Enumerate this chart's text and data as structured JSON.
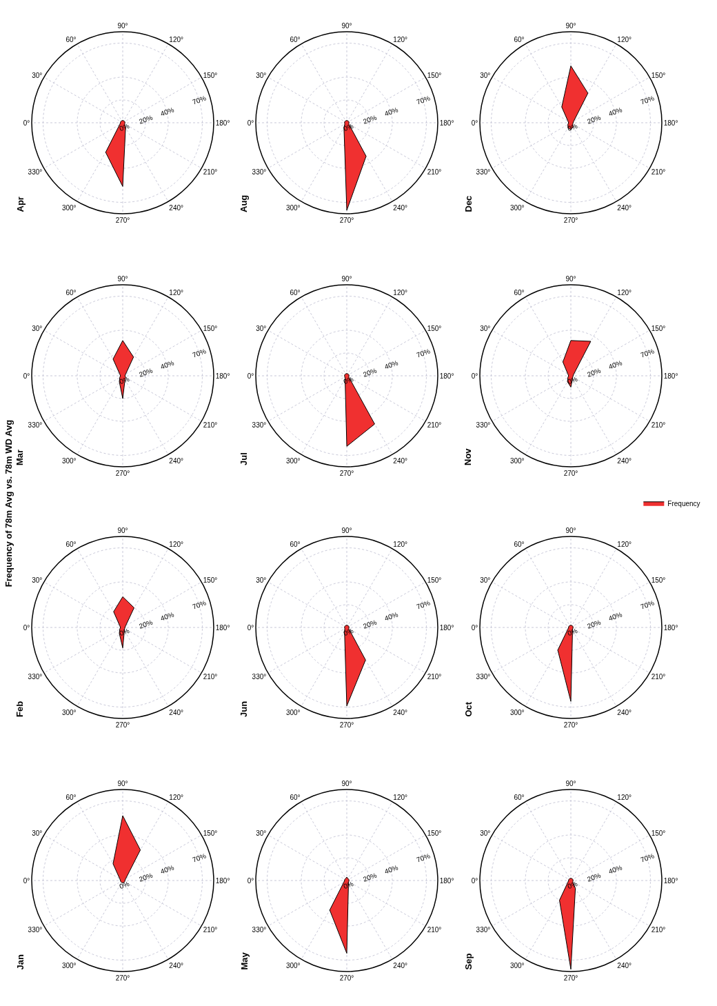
{
  "chart_data": [
    {
      "type": "radar",
      "title": "Jan",
      "annotations": [
        "Frequency of 78m Avg vs. 78m WD Avg"
      ],
      "categories": [
        "90°",
        "120°",
        "150°",
        "180°",
        "210°",
        "240°",
        "270°",
        "300°",
        "330°",
        "0°",
        "30°",
        "60°"
      ],
      "ylim": [
        0,
        80
      ],
      "yticks": [
        {
          "value": 0,
          "label": "0%"
        },
        {
          "value": 20,
          "label": "20%"
        },
        {
          "value": 40,
          "label": "40%"
        },
        {
          "value": 70,
          "label": "70%"
        }
      ],
      "grid": true,
      "series": [
        {
          "color": "#f03030",
          "values": [
            57,
            31,
            3,
            2,
            2,
            2,
            2,
            2,
            2,
            2,
            3,
            17
          ]
        }
      ]
    },
    {
      "type": "radar",
      "title": "Feb",
      "categories": [
        "90°",
        "120°",
        "150°",
        "180°",
        "210°",
        "240°",
        "270°",
        "300°",
        "330°",
        "0°",
        "30°",
        "60°"
      ],
      "ylim": [
        0,
        80
      ],
      "yticks": [
        {
          "value": 0,
          "label": "0%"
        },
        {
          "value": 20,
          "label": "20%"
        },
        {
          "value": 40,
          "label": "40%"
        },
        {
          "value": 70,
          "label": "70%"
        }
      ],
      "grid": true,
      "series": [
        {
          "color": "#f03030",
          "values": [
            27,
            20,
            3,
            2,
            2,
            3,
            18,
            6,
            3,
            2,
            3,
            16
          ]
        }
      ]
    },
    {
      "type": "radar",
      "title": "Mar",
      "categories": [
        "90°",
        "120°",
        "150°",
        "180°",
        "210°",
        "240°",
        "270°",
        "300°",
        "330°",
        "0°",
        "30°",
        "60°"
      ],
      "ylim": [
        0,
        80
      ],
      "yticks": [
        {
          "value": 0,
          "label": "0%"
        },
        {
          "value": 20,
          "label": "20%"
        },
        {
          "value": 40,
          "label": "40%"
        },
        {
          "value": 70,
          "label": "70%"
        }
      ],
      "grid": true,
      "series": [
        {
          "color": "#f03030",
          "values": [
            31,
            19,
            3,
            2,
            3,
            4,
            20,
            6,
            3,
            2,
            3,
            17
          ]
        }
      ]
    },
    {
      "type": "radar",
      "title": "Apr",
      "categories": [
        "90°",
        "120°",
        "150°",
        "180°",
        "210°",
        "240°",
        "270°",
        "300°",
        "330°",
        "0°",
        "30°",
        "60°"
      ],
      "ylim": [
        0,
        80
      ],
      "yticks": [
        {
          "value": 0,
          "label": "0%"
        },
        {
          "value": 20,
          "label": "20%"
        },
        {
          "value": 40,
          "label": "40%"
        },
        {
          "value": 70,
          "label": "70%"
        }
      ],
      "grid": true,
      "series": [
        {
          "color": "#f03030",
          "values": [
            2,
            2,
            2,
            2,
            2,
            5,
            56,
            30,
            3,
            2,
            2,
            2
          ]
        }
      ]
    },
    {
      "type": "radar",
      "title": "May",
      "categories": [
        "90°",
        "120°",
        "150°",
        "180°",
        "210°",
        "240°",
        "270°",
        "300°",
        "330°",
        "0°",
        "30°",
        "60°"
      ],
      "ylim": [
        0,
        80
      ],
      "yticks": [
        {
          "value": 0,
          "label": "0%"
        },
        {
          "value": 20,
          "label": "20%"
        },
        {
          "value": 40,
          "label": "40%"
        },
        {
          "value": 70,
          "label": "70%"
        }
      ],
      "grid": true,
      "series": [
        {
          "color": "#f03030",
          "values": [
            3,
            2,
            2,
            2,
            2,
            3,
            64,
            30,
            3,
            2,
            2,
            2
          ]
        }
      ]
    },
    {
      "type": "radar",
      "title": "Jun",
      "categories": [
        "90°",
        "120°",
        "150°",
        "180°",
        "210°",
        "240°",
        "270°",
        "300°",
        "330°",
        "0°",
        "30°",
        "60°"
      ],
      "ylim": [
        0,
        80
      ],
      "yticks": [
        {
          "value": 0,
          "label": "0%"
        },
        {
          "value": 20,
          "label": "20%"
        },
        {
          "value": 40,
          "label": "40%"
        },
        {
          "value": 70,
          "label": "70%"
        }
      ],
      "grid": true,
      "series": [
        {
          "color": "#f03030",
          "values": [
            2,
            2,
            2,
            2,
            2,
            33,
            69,
            4,
            2,
            2,
            2,
            2
          ]
        }
      ]
    },
    {
      "type": "radar",
      "title": "Jul",
      "categories": [
        "90°",
        "120°",
        "150°",
        "180°",
        "210°",
        "240°",
        "270°",
        "300°",
        "330°",
        "0°",
        "30°",
        "60°"
      ],
      "ylim": [
        0,
        80
      ],
      "yticks": [
        {
          "value": 0,
          "label": "0%"
        },
        {
          "value": 20,
          "label": "20%"
        },
        {
          "value": 40,
          "label": "40%"
        },
        {
          "value": 70,
          "label": "70%"
        }
      ],
      "grid": true,
      "series": [
        {
          "color": "#f03030",
          "values": [
            2,
            2,
            2,
            2,
            2,
            49,
            62,
            3,
            2,
            2,
            2,
            2
          ]
        }
      ]
    },
    {
      "type": "radar",
      "title": "Aug",
      "categories": [
        "90°",
        "120°",
        "150°",
        "180°",
        "210°",
        "240°",
        "270°",
        "300°",
        "330°",
        "0°",
        "30°",
        "60°"
      ],
      "ylim": [
        0,
        80
      ],
      "yticks": [
        {
          "value": 0,
          "label": "0%"
        },
        {
          "value": 20,
          "label": "20%"
        },
        {
          "value": 40,
          "label": "40%"
        },
        {
          "value": 70,
          "label": "70%"
        }
      ],
      "grid": true,
      "series": [
        {
          "color": "#f03030",
          "values": [
            2,
            2,
            2,
            2,
            2,
            34,
            77,
            5,
            2,
            2,
            2,
            2
          ]
        }
      ]
    },
    {
      "type": "radar",
      "title": "Sep",
      "categories": [
        "90°",
        "120°",
        "150°",
        "180°",
        "210°",
        "240°",
        "270°",
        "300°",
        "330°",
        "0°",
        "30°",
        "60°"
      ],
      "ylim": [
        0,
        80
      ],
      "yticks": [
        {
          "value": 0,
          "label": "0%"
        },
        {
          "value": 20,
          "label": "20%"
        },
        {
          "value": 40,
          "label": "40%"
        },
        {
          "value": 70,
          "label": "70%"
        }
      ],
      "grid": true,
      "series": [
        {
          "color": "#f03030",
          "values": [
            2,
            2,
            2,
            2,
            2,
            8,
            78,
            20,
            3,
            2,
            2,
            2
          ]
        }
      ]
    },
    {
      "type": "radar",
      "title": "Oct",
      "categories": [
        "90°",
        "120°",
        "150°",
        "180°",
        "210°",
        "240°",
        "270°",
        "300°",
        "330°",
        "0°",
        "30°",
        "60°"
      ],
      "ylim": [
        0,
        80
      ],
      "yticks": [
        {
          "value": 0,
          "label": "0%"
        },
        {
          "value": 20,
          "label": "20%"
        },
        {
          "value": 40,
          "label": "40%"
        },
        {
          "value": 70,
          "label": "70%"
        }
      ],
      "grid": true,
      "series": [
        {
          "color": "#f03030",
          "values": [
            2,
            2,
            2,
            2,
            2,
            3,
            65,
            23,
            3,
            2,
            2,
            2
          ]
        }
      ]
    },
    {
      "type": "radar",
      "title": "Nov",
      "categories": [
        "90°",
        "120°",
        "150°",
        "180°",
        "210°",
        "240°",
        "270°",
        "300°",
        "330°",
        "0°",
        "30°",
        "60°"
      ],
      "ylim": [
        0,
        80
      ],
      "yticks": [
        {
          "value": 0,
          "label": "0%"
        },
        {
          "value": 20,
          "label": "20%"
        },
        {
          "value": 40,
          "label": "40%"
        },
        {
          "value": 70,
          "label": "70%"
        }
      ],
      "grid": true,
      "legend": "right",
      "series": [
        {
          "name": "Frequency",
          "color": "#f03030",
          "values": [
            31,
            35,
            3,
            2,
            2,
            3,
            10,
            6,
            3,
            2,
            3,
            14
          ]
        }
      ]
    },
    {
      "type": "radar",
      "title": "Dec",
      "categories": [
        "90°",
        "120°",
        "150°",
        "180°",
        "210°",
        "240°",
        "270°",
        "300°",
        "330°",
        "0°",
        "30°",
        "60°"
      ],
      "ylim": [
        0,
        80
      ],
      "yticks": [
        {
          "value": 0,
          "label": "0%"
        },
        {
          "value": 20,
          "label": "20%"
        },
        {
          "value": 40,
          "label": "40%"
        },
        {
          "value": 70,
          "label": "70%"
        }
      ],
      "grid": true,
      "series": [
        {
          "color": "#f03030",
          "values": [
            50,
            30,
            3,
            2,
            2,
            4,
            6,
            5,
            3,
            2,
            3,
            16
          ]
        }
      ]
    }
  ]
}
